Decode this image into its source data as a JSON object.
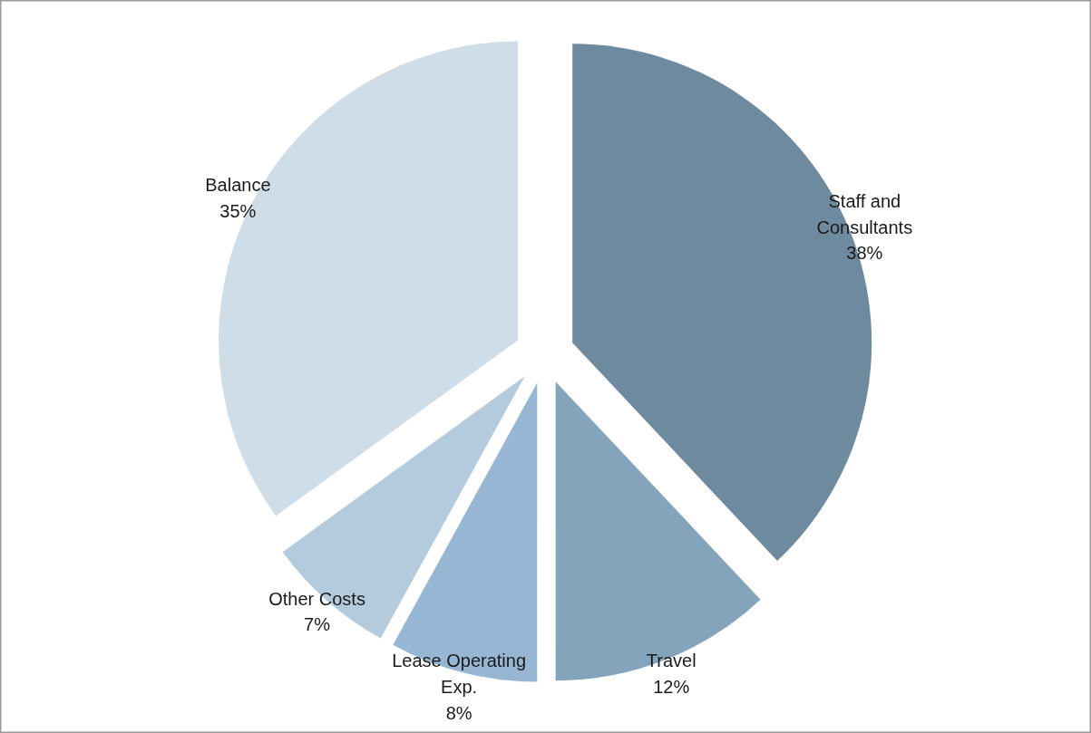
{
  "chart_data": {
    "type": "pie",
    "categories": [
      "Staff and Consultants",
      "Travel",
      "Lease Operating Exp.",
      "Other Costs",
      "Balance"
    ],
    "values": [
      38,
      12,
      8,
      7,
      35
    ],
    "value_labels": [
      "38%",
      "12%",
      "8%",
      "7%",
      "35%"
    ],
    "colors": [
      "#6e8a9f",
      "#84a4bc",
      "#97b6d3",
      "#b4cadd",
      "#cfdde8"
    ]
  }
}
